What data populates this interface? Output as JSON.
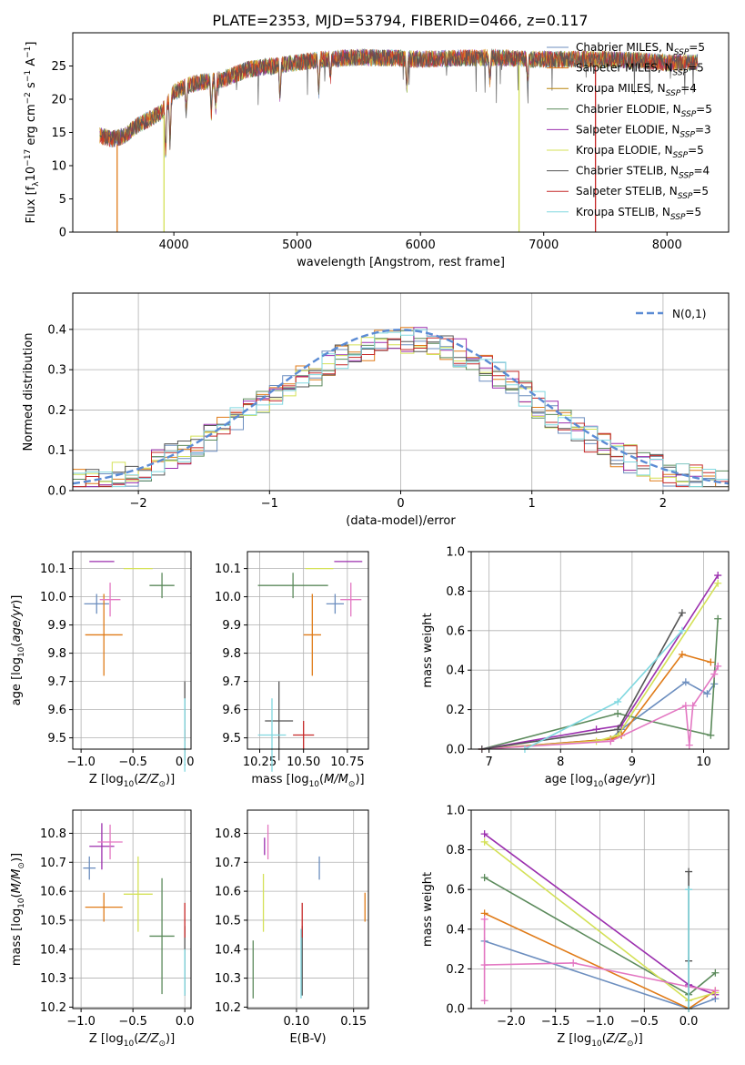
{
  "figure": {
    "title": "PLATE=2353, MJD=53794, FIBERID=0466, z=0.117"
  },
  "colors": {
    "Chabrier MILES": "#6c8ebf",
    "Salpeter MILES": "#e07b18",
    "Kroupa MILES": "#b8860b",
    "Chabrier ELODIE": "#5b8a5b",
    "Salpeter ELODIE": "#9b2fae",
    "Kroupa ELODIE": "#d4e157",
    "Chabrier STELIB": "#555555",
    "Salpeter STELIB": "#c62828",
    "Kroupa STELIB": "#80d8e0",
    "pink": "#e377c2",
    "gauss": "#5b8bd4"
  },
  "chart_data": [
    {
      "id": "spectrum",
      "type": "line",
      "title": "PLATE=2353, MJD=53794, FIBERID=0466, z=0.117",
      "xlabel": "wavelength [Angstrom, rest frame]",
      "ylabel": "Flux [f_λ 10^-17 erg cm^-2 s^-1 A^-1]",
      "xlim": [
        3180,
        8500
      ],
      "ylim": [
        0,
        30
      ],
      "xticks": [
        4000,
        5000,
        6000,
        7000,
        8000
      ],
      "yticks": [
        0,
        5,
        10,
        15,
        20,
        25
      ],
      "grid": false,
      "legend_position": "right",
      "legend": [
        {
          "name": "Chabrier MILES",
          "sub": "5"
        },
        {
          "name": "Salpeter MILES",
          "sub": "5"
        },
        {
          "name": "Kroupa MILES",
          "sub": "4"
        },
        {
          "name": "Chabrier ELODIE",
          "sub": "5"
        },
        {
          "name": "Salpeter ELODIE",
          "sub": "3"
        },
        {
          "name": "Kroupa ELODIE",
          "sub": "5"
        },
        {
          "name": "Chabrier STELIB",
          "sub": "4"
        },
        {
          "name": "Salpeter STELIB",
          "sub": "5"
        },
        {
          "name": "Kroupa STELIB",
          "sub": "5"
        }
      ],
      "envelope": [
        [
          3400,
          14.5
        ],
        [
          3500,
          14
        ],
        [
          3600,
          14.5
        ],
        [
          3700,
          16
        ],
        [
          3800,
          17
        ],
        [
          3900,
          18
        ],
        [
          4000,
          21
        ],
        [
          4100,
          22
        ],
        [
          4200,
          22.5
        ],
        [
          4400,
          23
        ],
        [
          4600,
          24.5
        ],
        [
          4800,
          25
        ],
        [
          5000,
          25.5
        ],
        [
          5200,
          26
        ],
        [
          5500,
          26.3
        ],
        [
          5800,
          26.2
        ],
        [
          6000,
          26
        ],
        [
          6300,
          26.2
        ],
        [
          6600,
          26.3
        ],
        [
          6900,
          26
        ],
        [
          7200,
          26
        ],
        [
          7500,
          26
        ],
        [
          7800,
          25.8
        ],
        [
          8000,
          25.5
        ],
        [
          8250,
          25.5
        ]
      ],
      "model_drops": [
        {
          "name": "Salpeter MILES",
          "x": 3540
        },
        {
          "name": "Kroupa ELODIE",
          "x": 3920
        },
        {
          "name": "Kroupa ELODIE",
          "x": 6800
        },
        {
          "name": "Salpeter STELIB",
          "x": 7420
        }
      ]
    },
    {
      "id": "residual-hist",
      "type": "bar",
      "xlabel": "(data-model)/error",
      "ylabel": "Normed distribution",
      "xlim": [
        -2.5,
        2.5
      ],
      "ylim": [
        0,
        0.49
      ],
      "xticks": [
        -2,
        -1,
        0,
        1,
        2
      ],
      "yticks": [
        0.0,
        0.1,
        0.2,
        0.3,
        0.4
      ],
      "grid": true,
      "legend_position": "top-right",
      "gaussian_label": "N(0,1)",
      "bin_width": 0.1
    },
    {
      "id": "age-vs-Z",
      "type": "scatter",
      "xlabel": "Z [log10(Z/Z⊙)]",
      "ylabel": "age [log10(age/yr)]",
      "xlim": [
        -1.08,
        0.06
      ],
      "ylim": [
        9.46,
        10.16
      ],
      "xticks": [
        -1.0,
        -0.5,
        0.0
      ],
      "yticks": [
        9.5,
        9.6,
        9.7,
        9.8,
        9.9,
        10.0,
        10.1
      ],
      "grid": true,
      "points": [
        {
          "c": "Chabrier MILES",
          "x": -0.85,
          "xe": 0.12,
          "y": 9.975,
          "ye": 0.035
        },
        {
          "c": "Salpeter MILES",
          "x": -0.78,
          "xe": 0.18,
          "y": 9.865,
          "ye": 0.145
        },
        {
          "c": "Chabrier ELODIE",
          "x": -0.22,
          "xe": 0.12,
          "y": 10.04,
          "ye": 0.045
        },
        {
          "c": "Salpeter ELODIE",
          "x": -0.8,
          "xe": 0.12,
          "y": 10.125,
          "ye": 0.0
        },
        {
          "c": "Kroupa ELODIE",
          "x": -0.45,
          "xe": 0.14,
          "y": 10.1,
          "ye": 0.0
        },
        {
          "c": "pink",
          "x": -0.72,
          "xe": 0.1,
          "y": 9.99,
          "ye": 0.06
        },
        {
          "c": "Chabrier STELIB",
          "x": 0.0,
          "xe": 0.0,
          "y": 9.56,
          "ye": 0.14
        },
        {
          "c": "Salpeter STELIB",
          "x": 0.0,
          "xe": 0.0,
          "y": 9.51,
          "ye": 0.02
        },
        {
          "c": "Kroupa STELIB",
          "x": 0.0,
          "xe": 0.0,
          "y": 9.51,
          "ye": 0.13
        }
      ]
    },
    {
      "id": "age-vs-mass",
      "type": "scatter",
      "xlabel": "mass [log10(M/M⊙)]",
      "ylabel": "",
      "xlim": [
        10.18,
        10.87
      ],
      "ylim": [
        9.46,
        10.16
      ],
      "xticks": [
        10.25,
        10.5,
        10.75
      ],
      "yticks": [
        9.5,
        9.6,
        9.7,
        9.8,
        9.9,
        10.0,
        10.1
      ],
      "grid": true,
      "points": [
        {
          "c": "Chabrier MILES",
          "x": 10.68,
          "xe": 0.05,
          "y": 9.975,
          "ye": 0.035
        },
        {
          "c": "Salpeter MILES",
          "x": 10.55,
          "xe": 0.05,
          "y": 9.865,
          "ye": 0.145
        },
        {
          "c": "Chabrier ELODIE",
          "x": 10.44,
          "xe": 0.2,
          "y": 10.04,
          "ye": 0.045
        },
        {
          "c": "Salpeter ELODIE",
          "x": 10.755,
          "xe": 0.08,
          "y": 10.125,
          "ye": 0.0
        },
        {
          "c": "Kroupa ELODIE",
          "x": 10.59,
          "xe": 0.08,
          "y": 10.1,
          "ye": 0.0
        },
        {
          "c": "pink",
          "x": 10.77,
          "xe": 0.06,
          "y": 9.99,
          "ye": 0.06
        },
        {
          "c": "Chabrier STELIB",
          "x": 10.36,
          "xe": 0.08,
          "y": 9.56,
          "ye": 0.14
        },
        {
          "c": "Salpeter STELIB",
          "x": 10.5,
          "xe": 0.06,
          "y": 9.51,
          "ye": 0.05
        },
        {
          "c": "Kroupa STELIB",
          "x": 10.32,
          "xe": 0.08,
          "y": 9.51,
          "ye": 0.13
        }
      ]
    },
    {
      "id": "mass-weight-vs-age",
      "type": "line",
      "xlabel": "age [log10(age/yr)]",
      "ylabel": "mass weight",
      "xlim": [
        6.75,
        10.35
      ],
      "ylim": [
        0,
        1.0
      ],
      "xticks": [
        7,
        8,
        9,
        10
      ],
      "yticks": [
        0.0,
        0.2,
        0.4,
        0.6,
        0.8,
        1.0
      ],
      "grid": true,
      "series": [
        {
          "c": "Chabrier MILES",
          "x": [
            6.9,
            8.7,
            8.85,
            9.75,
            10.05,
            10.15
          ],
          "y": [
            0.0,
            0.05,
            0.1,
            0.34,
            0.28,
            0.33
          ]
        },
        {
          "c": "Salpeter MILES",
          "x": [
            6.9,
            8.7,
            8.85,
            9.7,
            10.1
          ],
          "y": [
            0.0,
            0.05,
            0.07,
            0.48,
            0.44
          ]
        },
        {
          "c": "Chabrier ELODIE",
          "x": [
            6.9,
            8.8,
            10.1,
            10.2
          ],
          "y": [
            0.0,
            0.18,
            0.07,
            0.66
          ]
        },
        {
          "c": "Salpeter ELODIE",
          "x": [
            6.9,
            8.5,
            8.85,
            10.2
          ],
          "y": [
            0.0,
            0.1,
            0.12,
            0.88
          ]
        },
        {
          "c": "Kroupa ELODIE",
          "x": [
            6.9,
            8.5,
            8.8,
            10.2
          ],
          "y": [
            0.0,
            0.04,
            0.07,
            0.84
          ]
        },
        {
          "c": "pink",
          "x": [
            6.9,
            8.7,
            9.75,
            9.8,
            9.85,
            10.15,
            10.2
          ],
          "y": [
            0.0,
            0.04,
            0.22,
            0.02,
            0.22,
            0.38,
            0.42
          ]
        },
        {
          "c": "Chabrier STELIB",
          "x": [
            6.9,
            8.8,
            9.7
          ],
          "y": [
            0.0,
            0.1,
            0.69
          ]
        },
        {
          "c": "Kroupa STELIB",
          "x": [
            7.5,
            8.8,
            9.7
          ],
          "y": [
            0.0,
            0.24,
            0.6
          ]
        }
      ]
    },
    {
      "id": "mass-vs-Z",
      "type": "scatter",
      "xlabel": "Z [log10(Z/Z⊙)]",
      "ylabel": "mass [log10(M/M⊙)]",
      "xlim": [
        -1.08,
        0.06
      ],
      "ylim": [
        10.195,
        10.88
      ],
      "xticks": [
        -1.0,
        -0.5,
        0.0
      ],
      "yticks": [
        10.2,
        10.3,
        10.4,
        10.5,
        10.6,
        10.7,
        10.8
      ],
      "grid": true,
      "points": [
        {
          "c": "Chabrier MILES",
          "x": -0.92,
          "xe": 0.06,
          "y": 10.68,
          "ye": 0.04
        },
        {
          "c": "Salpeter MILES",
          "x": -0.78,
          "xe": 0.18,
          "y": 10.545,
          "ye": 0.05
        },
        {
          "c": "Chabrier ELODIE",
          "x": -0.22,
          "xe": 0.12,
          "y": 10.445,
          "ye": 0.2
        },
        {
          "c": "Salpeter ELODIE",
          "x": -0.8,
          "xe": 0.12,
          "y": 10.755,
          "ye": 0.08
        },
        {
          "c": "Kroupa ELODIE",
          "x": -0.45,
          "xe": 0.14,
          "y": 10.59,
          "ye": 0.13
        },
        {
          "c": "pink",
          "x": -0.72,
          "xe": 0.12,
          "y": 10.77,
          "ye": 0.06
        },
        {
          "c": "Chabrier STELIB",
          "x": 0.0,
          "xe": 0.0,
          "y": 10.36,
          "ye": 0.12
        },
        {
          "c": "Salpeter STELIB",
          "x": 0.0,
          "xe": 0.0,
          "y": 10.5,
          "ye": 0.06
        },
        {
          "c": "Kroupa STELIB",
          "x": 0.0,
          "xe": 0.0,
          "y": 10.32,
          "ye": 0.08
        }
      ]
    },
    {
      "id": "mass-vs-ebv",
      "type": "scatter",
      "xlabel": "E(B-V)",
      "ylabel": "",
      "xlim": [
        0.057,
        0.163
      ],
      "ylim": [
        10.195,
        10.88
      ],
      "xticks": [
        0.1,
        0.15
      ],
      "yticks": [
        10.2,
        10.3,
        10.4,
        10.5,
        10.6,
        10.7,
        10.8
      ],
      "grid": true,
      "points": [
        {
          "c": "Chabrier MILES",
          "x": 0.12,
          "xe": 0.0,
          "y": 10.68,
          "ye": 0.04
        },
        {
          "c": "Salpeter MILES",
          "x": 0.16,
          "xe": 0.0,
          "y": 10.545,
          "ye": 0.05
        },
        {
          "c": "Chabrier ELODIE",
          "x": 0.062,
          "xe": 0.0,
          "y": 10.33,
          "ye": 0.1
        },
        {
          "c": "Salpeter ELODIE",
          "x": 0.072,
          "xe": 0.0,
          "y": 10.755,
          "ye": 0.03
        },
        {
          "c": "Kroupa ELODIE",
          "x": 0.071,
          "xe": 0.0,
          "y": 10.56,
          "ye": 0.1
        },
        {
          "c": "pink",
          "x": 0.075,
          "xe": 0.0,
          "y": 10.77,
          "ye": 0.06
        },
        {
          "c": "Chabrier STELIB",
          "x": 0.105,
          "xe": 0.0,
          "y": 10.36,
          "ye": 0.12
        },
        {
          "c": "Salpeter STELIB",
          "x": 0.105,
          "xe": 0.0,
          "y": 10.5,
          "ye": 0.06
        },
        {
          "c": "Kroupa STELIB",
          "x": 0.104,
          "xe": 0.0,
          "y": 10.35,
          "ye": 0.12
        }
      ]
    },
    {
      "id": "mass-weight-vs-Z",
      "type": "line",
      "xlabel": "Z [log10(Z/Z⊙)]",
      "ylabel": "mass weight",
      "xlim": [
        -2.45,
        0.45
      ],
      "ylim": [
        0,
        1.0
      ],
      "xticks": [
        -2.0,
        -1.5,
        -1.0,
        -0.5,
        0.0
      ],
      "yticks": [
        0.0,
        0.2,
        0.4,
        0.6,
        0.8,
        1.0
      ],
      "grid": true,
      "series": [
        {
          "c": "Chabrier MILES",
          "x": [
            -2.3,
            0.0,
            0.3
          ],
          "y": [
            0.34,
            0.0,
            0.05
          ]
        },
        {
          "c": "Salpeter MILES",
          "x": [
            -2.3,
            0.0,
            0.3
          ],
          "y": [
            0.48,
            0.0,
            0.09
          ]
        },
        {
          "c": "Chabrier ELODIE",
          "x": [
            -2.3,
            0.0,
            0.3
          ],
          "y": [
            0.66,
            0.07,
            0.18
          ]
        },
        {
          "c": "Salpeter ELODIE",
          "x": [
            -2.3,
            0.0,
            0.3
          ],
          "y": [
            0.88,
            0.12,
            0.07
          ]
        },
        {
          "c": "Kroupa ELODIE",
          "x": [
            -2.3,
            0.0,
            0.3
          ],
          "y": [
            0.84,
            0.04,
            0.08
          ]
        },
        {
          "c": "pink",
          "x": [
            -2.3,
            -2.3,
            -2.3,
            -1.3,
            0.0,
            0.3
          ],
          "y": [
            0.04,
            0.45,
            0.22,
            0.23,
            0.11,
            0.09
          ]
        },
        {
          "c": "Chabrier STELIB",
          "x": [
            0.0,
            0.0,
            0.0
          ],
          "y": [
            0.69,
            0.24,
            0.0
          ]
        },
        {
          "c": "Kroupa STELIB",
          "x": [
            0.0,
            0.0
          ],
          "y": [
            0.6,
            0.0
          ]
        }
      ]
    }
  ]
}
